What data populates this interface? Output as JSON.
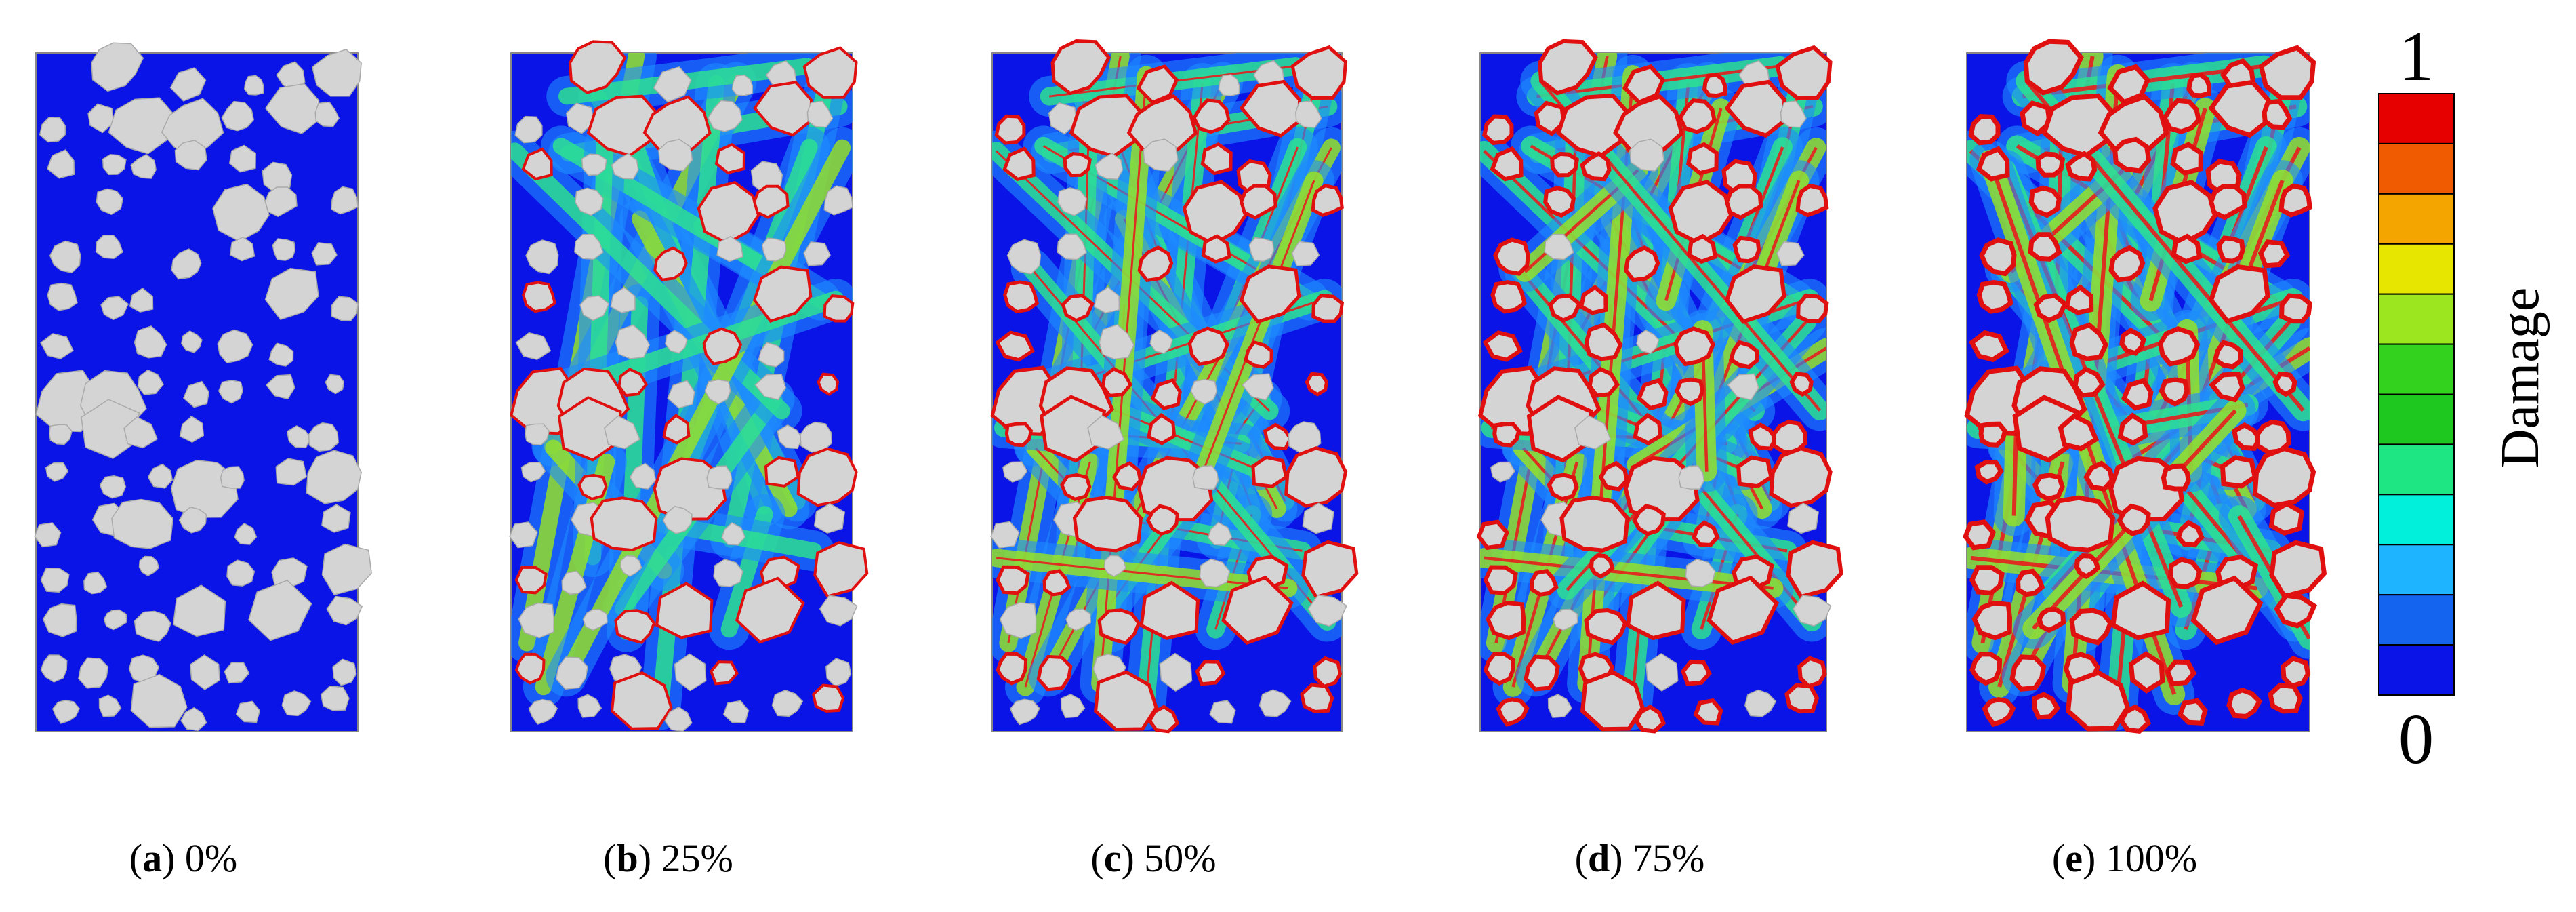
{
  "panels": [
    {
      "caption": [
        "(",
        "a",
        ") 0%"
      ]
    },
    {
      "caption": [
        "(",
        "b",
        ") 25%"
      ]
    },
    {
      "caption": [
        "(",
        "c",
        ") 50%"
      ]
    },
    {
      "caption": [
        "(",
        "d",
        ") 75%"
      ]
    },
    {
      "caption": [
        "(",
        "e",
        ") 100%"
      ]
    }
  ],
  "colorbar": {
    "max": "1",
    "min": "0",
    "label": "Damage"
  }
}
